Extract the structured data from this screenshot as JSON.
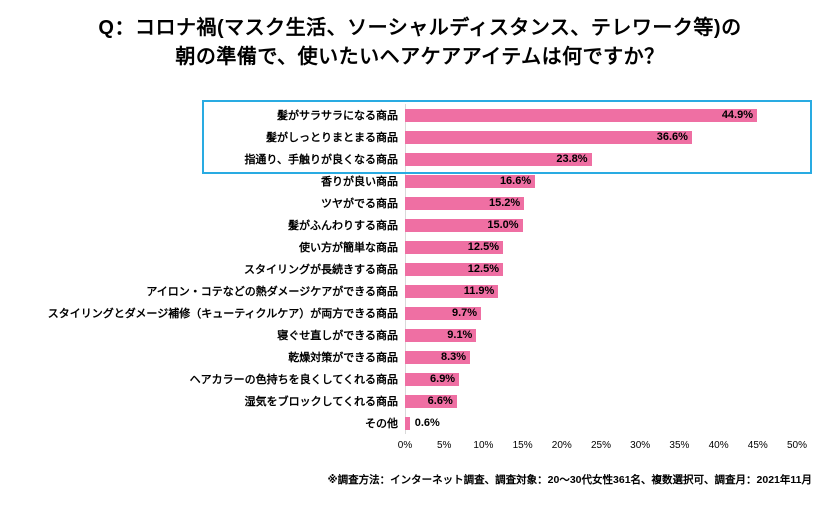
{
  "title": {
    "line1": "Q：コロナ禍(マスク生活、ソーシャルディスタンス、テレワーク等)の",
    "line2": "朝の準備で、使いたいヘアケアアイテムは何ですか？"
  },
  "chart_data": {
    "type": "bar",
    "orientation": "horizontal",
    "title": "Q：コロナ禍(マスク生活、ソーシャルディスタンス、テレワーク等)の朝の準備で、使いたいヘアケアアイテムは何ですか？",
    "categories": [
      "髪がサラサラになる商品",
      "髪がしっとりまとまる商品",
      "指通り、手触りが良くなる商品",
      "香りが良い商品",
      "ツヤがでる商品",
      "髪がふんわりする商品",
      "使い方が簡単な商品",
      "スタイリングが長続きする商品",
      "アイロン・コテなどの熱ダメージケアができる商品",
      "スタイリングとダメージ補修（キューティクルケア）が両方できる商品",
      "寝ぐせ直しができる商品",
      "乾燥対策ができる商品",
      "ヘアカラーの色持ちを良くしてくれる商品",
      "湿気をブロックしてくれる商品",
      "その他"
    ],
    "values": [
      44.9,
      36.6,
      23.8,
      16.6,
      15.2,
      15.0,
      12.5,
      12.5,
      11.9,
      9.7,
      9.1,
      8.3,
      6.9,
      6.6,
      0.6
    ],
    "xlim": [
      0,
      50
    ],
    "x_ticks": [
      "0%",
      "5%",
      "10%",
      "15%",
      "20%",
      "25%",
      "30%",
      "35%",
      "40%",
      "45%",
      "50%"
    ],
    "grid": false,
    "legend": "none",
    "highlight_top_n": 3,
    "bar_color": "#EF6FA3",
    "highlight_border_color": "#29ABE2",
    "value_label_position": "inside-end"
  },
  "footnote": "※調査方法：インターネット調査、調査対象：20～30代女性361名、複数選択可、調査月：2021年11月"
}
